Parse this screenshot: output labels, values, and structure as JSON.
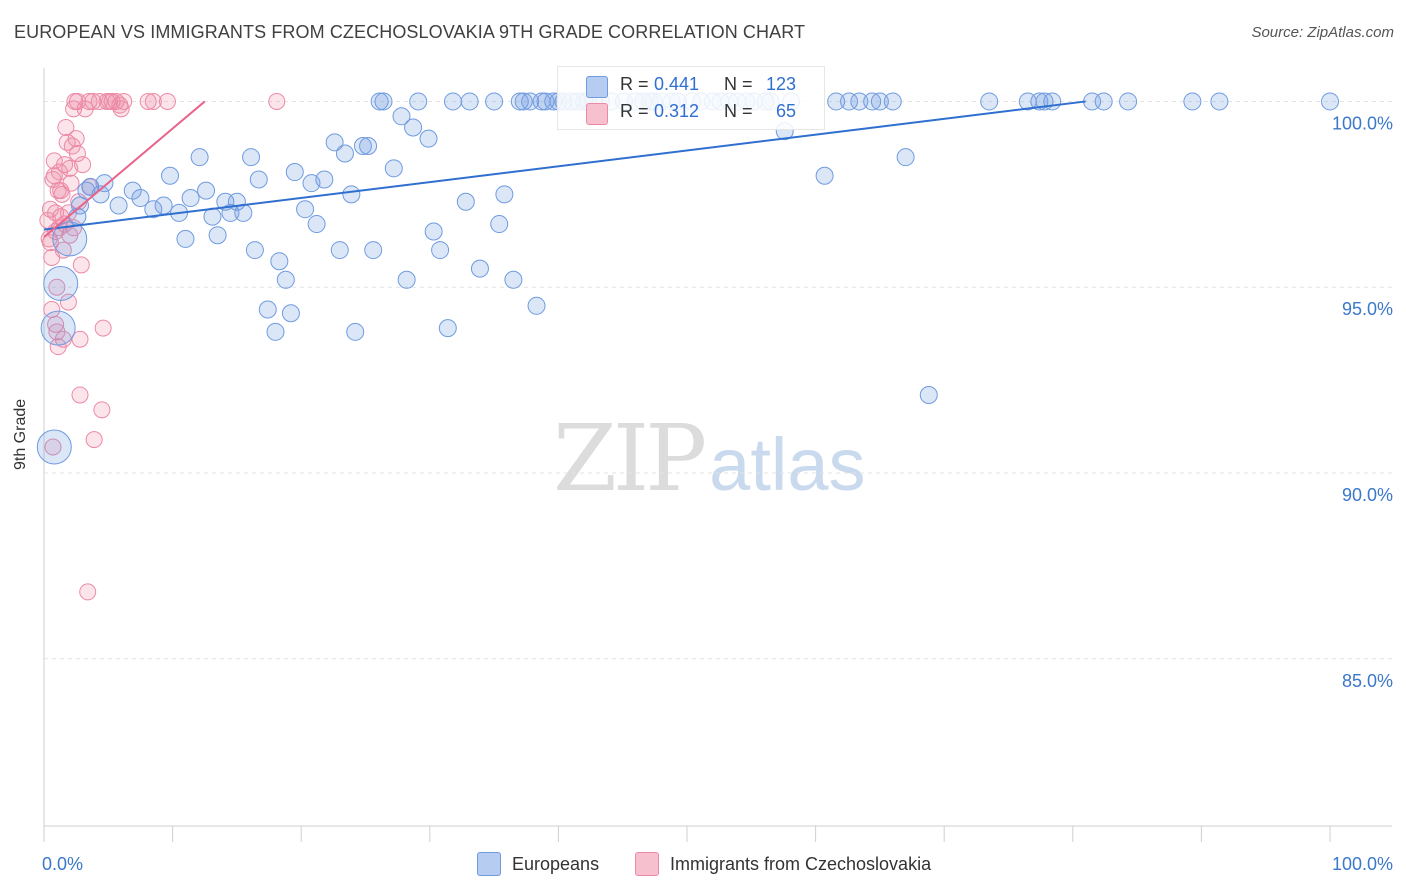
{
  "title": "EUROPEAN VS IMMIGRANTS FROM CZECHOSLOVAKIA 9TH GRADE CORRELATION CHART",
  "source": "Source: ZipAtlas.com",
  "watermark": {
    "zip": "ZIP",
    "atlas": "atlas"
  },
  "colors": {
    "blue": "#6f9be0",
    "blue_fill": "rgba(111,155,224,0.25)",
    "blue_line": "#2f6fd0",
    "pink": "#ec8aa6",
    "pink_fill": "rgba(236,138,166,0.22)",
    "pink_line": "#e8648a",
    "tick_text": "#3b78c9"
  },
  "stats": [
    {
      "r_label": "R =",
      "r_value": "0.441",
      "n_label": "N =",
      "n_value": "123",
      "color": "#b6cdf1"
    },
    {
      "r_label": "R =",
      "r_value": "0.312",
      "n_label": "N =",
      "n_value": "65",
      "color": "#f6c0cf"
    }
  ],
  "legend": [
    {
      "label": "Europeans",
      "color": "#b6cdf1"
    },
    {
      "label": "Immigrants from Czechoslovakia",
      "color": "#f6c0cf"
    }
  ],
  "chart_data": {
    "type": "scatter",
    "title": "EUROPEAN VS IMMIGRANTS FROM CZECHOSLOVAKIA 9TH GRADE CORRELATION CHART",
    "xlabel": "",
    "ylabel": "9th Grade",
    "xlim": [
      0,
      100
    ],
    "ylim": [
      80.5,
      100.9
    ],
    "x_tick_labels": [
      "0.0%",
      "100.0%"
    ],
    "y_ticks": [
      85,
      90,
      95,
      100
    ],
    "y_tick_labels": [
      "85.0%",
      "90.0%",
      "95.0%",
      "100.0%"
    ],
    "grid": true,
    "series": [
      {
        "name": "Europeans",
        "trend": {
          "x": [
            0,
            81
          ],
          "y": [
            96.55,
            100.0
          ]
        },
        "points": [
          [
            0.8,
            90.7
          ],
          [
            1.1,
            93.9
          ],
          [
            1.3,
            95.1
          ],
          [
            2.0,
            96.3
          ],
          [
            2.6,
            96.9
          ],
          [
            2.8,
            97.2
          ],
          [
            3.3,
            97.6
          ],
          [
            3.6,
            97.7
          ],
          [
            4.4,
            97.5
          ],
          [
            4.7,
            97.8
          ],
          [
            5.8,
            97.2
          ],
          [
            6.9,
            97.6
          ],
          [
            7.5,
            97.4
          ],
          [
            8.5,
            97.1
          ],
          [
            9.3,
            97.2
          ],
          [
            9.8,
            98.0
          ],
          [
            10.5,
            97.0
          ],
          [
            11.0,
            96.3
          ],
          [
            11.4,
            97.4
          ],
          [
            12.1,
            98.5
          ],
          [
            12.6,
            97.6
          ],
          [
            13.1,
            96.9
          ],
          [
            13.5,
            96.4
          ],
          [
            14.1,
            97.3
          ],
          [
            14.5,
            97.0
          ],
          [
            15.0,
            97.3
          ],
          [
            15.5,
            97.0
          ],
          [
            16.4,
            96.0
          ],
          [
            16.1,
            98.5
          ],
          [
            16.7,
            97.9
          ],
          [
            17.4,
            94.4
          ],
          [
            18.0,
            93.8
          ],
          [
            18.3,
            95.7
          ],
          [
            18.8,
            95.2
          ],
          [
            19.2,
            94.3
          ],
          [
            19.5,
            98.1
          ],
          [
            20.3,
            97.1
          ],
          [
            20.8,
            97.8
          ],
          [
            21.2,
            96.7
          ],
          [
            21.8,
            97.9
          ],
          [
            22.6,
            98.9
          ],
          [
            23.0,
            96.0
          ],
          [
            23.4,
            98.6
          ],
          [
            23.9,
            97.5
          ],
          [
            24.2,
            93.8
          ],
          [
            24.8,
            98.8
          ],
          [
            25.2,
            98.8
          ],
          [
            25.6,
            96.0
          ],
          [
            26.1,
            100.0
          ],
          [
            26.4,
            100.0
          ],
          [
            27.2,
            98.2
          ],
          [
            27.8,
            99.6
          ],
          [
            28.2,
            95.2
          ],
          [
            28.7,
            99.3
          ],
          [
            29.1,
            100.0
          ],
          [
            29.9,
            99.0
          ],
          [
            30.3,
            96.5
          ],
          [
            30.8,
            96.0
          ],
          [
            31.4,
            93.9
          ],
          [
            31.8,
            100.0
          ],
          [
            32.8,
            97.3
          ],
          [
            33.1,
            100.0
          ],
          [
            33.9,
            95.5
          ],
          [
            35.0,
            100.0
          ],
          [
            35.4,
            96.7
          ],
          [
            35.8,
            97.5
          ],
          [
            36.5,
            95.2
          ],
          [
            37.0,
            100.0
          ],
          [
            37.3,
            100.0
          ],
          [
            37.8,
            100.0
          ],
          [
            38.3,
            94.5
          ],
          [
            38.7,
            100.0
          ],
          [
            39.0,
            100.0
          ],
          [
            39.6,
            100.0
          ],
          [
            40.0,
            100.0
          ],
          [
            40.4,
            100.0
          ],
          [
            41.0,
            100.0
          ],
          [
            41.5,
            100.0
          ],
          [
            42.0,
            100.0
          ],
          [
            42.3,
            100.0
          ],
          [
            42.7,
            100.0
          ],
          [
            43.3,
            100.0
          ],
          [
            44.1,
            100.0
          ],
          [
            45.1,
            100.0
          ],
          [
            46.0,
            100.0
          ],
          [
            46.6,
            100.0
          ],
          [
            47.1,
            100.0
          ],
          [
            47.4,
            100.0
          ],
          [
            48.0,
            100.0
          ],
          [
            48.8,
            100.0
          ],
          [
            49.3,
            100.0
          ],
          [
            50.4,
            100.0
          ],
          [
            51.1,
            100.0
          ],
          [
            52.0,
            100.0
          ],
          [
            52.6,
            100.0
          ],
          [
            53.3,
            100.0
          ],
          [
            53.9,
            100.0
          ],
          [
            54.6,
            100.0
          ],
          [
            55.2,
            100.0
          ],
          [
            56.1,
            100.0
          ],
          [
            56.5,
            100.0
          ],
          [
            57.6,
            99.2
          ],
          [
            60.7,
            98.0
          ],
          [
            58.1,
            100.0
          ],
          [
            61.6,
            100.0
          ],
          [
            62.6,
            100.0
          ],
          [
            63.4,
            100.0
          ],
          [
            64.4,
            100.0
          ],
          [
            65.0,
            100.0
          ],
          [
            66.0,
            100.0
          ],
          [
            67.0,
            98.5
          ],
          [
            68.8,
            92.1
          ],
          [
            73.5,
            100.0
          ],
          [
            76.5,
            100.0
          ],
          [
            77.4,
            100.0
          ],
          [
            77.8,
            100.0
          ],
          [
            78.4,
            100.0
          ],
          [
            81.5,
            100.0
          ],
          [
            82.4,
            100.0
          ],
          [
            84.3,
            100.0
          ],
          [
            89.3,
            100.0
          ],
          [
            91.4,
            100.0
          ],
          [
            100.0,
            100.0
          ]
        ],
        "large_points": [
          [
            1.3,
            95.1
          ],
          [
            1.1,
            93.9
          ],
          [
            0.8,
            90.7
          ],
          [
            2.0,
            96.3
          ]
        ]
      },
      {
        "name": "Immigrants from Czechoslovakia",
        "trend": {
          "x": [
            0,
            12.5
          ],
          "y": [
            96.35,
            100.0
          ]
        },
        "points": [
          [
            0.3,
            96.8
          ],
          [
            0.4,
            96.3
          ],
          [
            0.5,
            97.1
          ],
          [
            0.6,
            95.8
          ],
          [
            0.7,
            97.9
          ],
          [
            0.8,
            98.0
          ],
          [
            0.9,
            96.5
          ],
          [
            1.0,
            95.0
          ],
          [
            1.1,
            97.6
          ],
          [
            1.2,
            98.1
          ],
          [
            0.6,
            94.4
          ],
          [
            0.9,
            94.0
          ],
          [
            1.0,
            93.8
          ],
          [
            1.2,
            96.6
          ],
          [
            1.3,
            96.9
          ],
          [
            1.4,
            97.5
          ],
          [
            1.5,
            96.0
          ],
          [
            1.5,
            93.6
          ],
          [
            1.6,
            98.3
          ],
          [
            1.7,
            99.3
          ],
          [
            1.8,
            98.9
          ],
          [
            1.9,
            97.0
          ],
          [
            1.9,
            94.6
          ],
          [
            2.0,
            96.4
          ],
          [
            2.1,
            97.8
          ],
          [
            2.2,
            98.8
          ],
          [
            2.3,
            99.8
          ],
          [
            2.4,
            100.0
          ],
          [
            2.5,
            99.0
          ],
          [
            2.6,
            100.0
          ],
          [
            2.6,
            98.6
          ],
          [
            2.7,
            97.3
          ],
          [
            2.8,
            93.6
          ],
          [
            2.9,
            95.6
          ],
          [
            3.0,
            98.3
          ],
          [
            3.2,
            99.8
          ],
          [
            2.8,
            92.1
          ],
          [
            3.5,
            100.0
          ],
          [
            3.6,
            97.7
          ],
          [
            3.8,
            100.0
          ],
          [
            3.9,
            90.9
          ],
          [
            4.3,
            100.0
          ],
          [
            4.5,
            91.7
          ],
          [
            4.6,
            93.9
          ],
          [
            4.9,
            100.0
          ],
          [
            5.1,
            100.0
          ],
          [
            5.3,
            100.0
          ],
          [
            5.6,
            100.0
          ],
          [
            5.9,
            99.9
          ],
          [
            6.2,
            100.0
          ],
          [
            1.1,
            93.4
          ],
          [
            0.8,
            98.4
          ],
          [
            0.9,
            97.0
          ],
          [
            0.5,
            96.2
          ],
          [
            3.4,
            86.8
          ],
          [
            0.7,
            90.7
          ],
          [
            8.1,
            100.0
          ],
          [
            8.5,
            100.0
          ],
          [
            9.6,
            100.0
          ],
          [
            18.1,
            100.0
          ],
          [
            6.0,
            99.8
          ],
          [
            2.3,
            96.6
          ],
          [
            1.6,
            96.7
          ],
          [
            2.0,
            98.2
          ],
          [
            1.3,
            97.6
          ]
        ],
        "large_points": []
      }
    ]
  }
}
